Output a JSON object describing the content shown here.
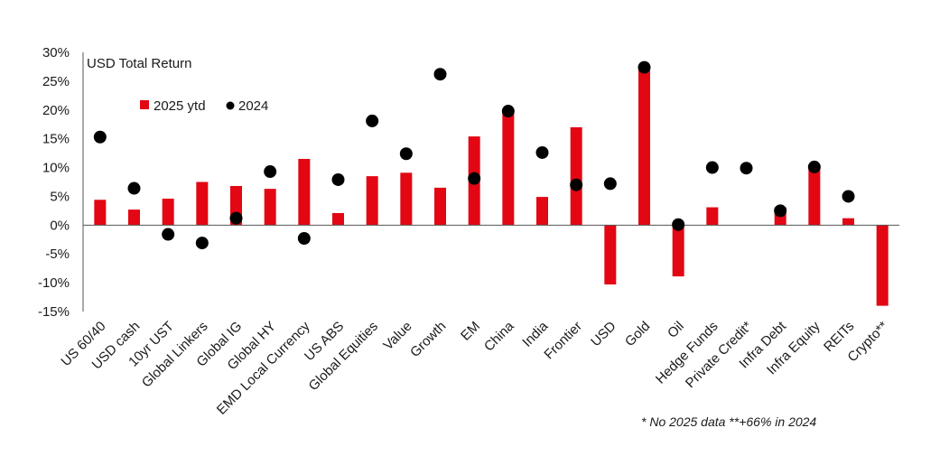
{
  "chart_data": {
    "type": "bar",
    "title": "",
    "annotation": "USD Total Return",
    "footnote": "* No 2025 data **+66% in 2024",
    "ylim": [
      -15,
      30
    ],
    "y_ticks": [
      30,
      25,
      20,
      15,
      10,
      5,
      0,
      -5,
      -10,
      -15
    ],
    "y_tick_labels": [
      "30%",
      "25%",
      "20%",
      "15%",
      "10%",
      "5%",
      "0%",
      "-5%",
      "-10%",
      "-15%"
    ],
    "grid": false,
    "legend_position": "top-left",
    "categories": [
      "US 60/40",
      "USD cash",
      "10yr UST",
      "Global Linkers",
      "Global IG",
      "Global HY",
      "EMD Local Currency",
      "US ABS",
      "Global Equities",
      "Value",
      "Growth",
      "EM",
      "China",
      "India",
      "Frontier",
      "USD",
      "Gold",
      "Oil",
      "Hedge Funds",
      "Private Credit*",
      "Infra Debt",
      "Infra Equity",
      "REITs",
      "Crypto**"
    ],
    "series": [
      {
        "name": "2025 ytd",
        "mark": "bar",
        "color": "#e30613",
        "values": [
          4.4,
          2.7,
          4.6,
          7.5,
          6.8,
          6.3,
          11.5,
          2.1,
          8.5,
          9.1,
          6.5,
          15.4,
          19.8,
          4.9,
          17.0,
          -10.3,
          27.5,
          -8.9,
          3.1,
          null,
          3.1,
          10.2,
          1.2,
          -14.0
        ]
      },
      {
        "name": "2024",
        "mark": "dot",
        "color": "#000000",
        "values": [
          15.3,
          6.4,
          -1.6,
          -3.1,
          1.2,
          9.3,
          -2.3,
          7.9,
          18.1,
          12.4,
          26.2,
          8.1,
          19.8,
          12.6,
          7.0,
          7.2,
          27.4,
          0.1,
          10.0,
          9.9,
          2.5,
          10.1,
          5.0,
          null
        ]
      }
    ]
  }
}
